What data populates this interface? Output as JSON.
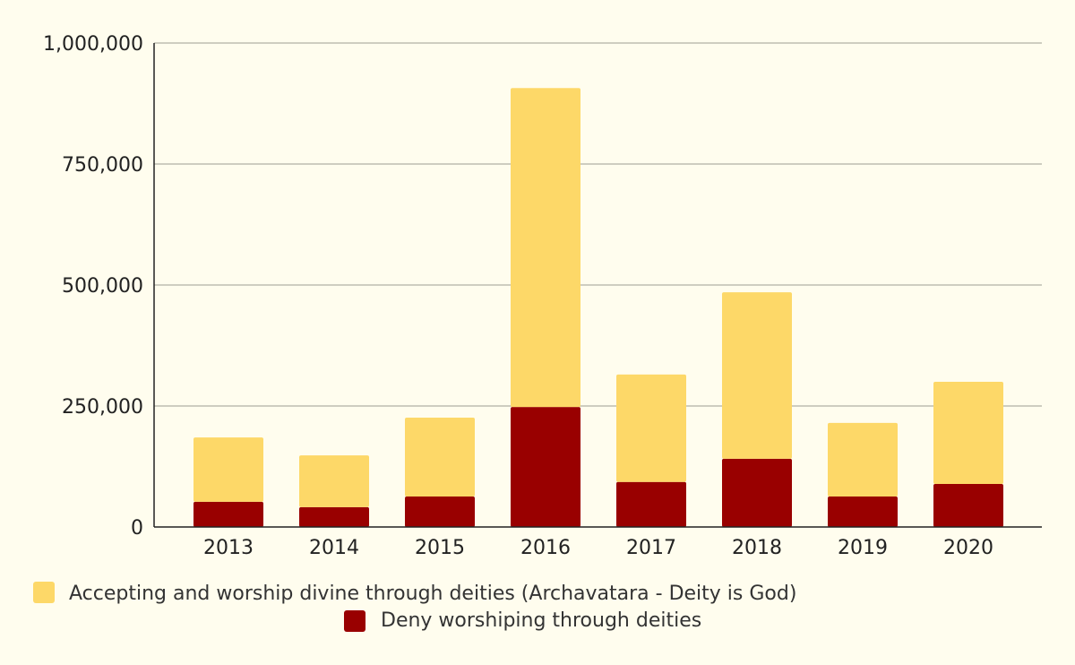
{
  "chart_data": {
    "type": "bar",
    "stacked": true,
    "title": "",
    "xlabel": "",
    "ylabel": "",
    "categories": [
      "2013",
      "2014",
      "2015",
      "2016",
      "2017",
      "2018",
      "2019",
      "2020"
    ],
    "series": [
      {
        "name": "Deny worshiping through deities",
        "color": "#990000",
        "values": [
          52000,
          41000,
          63000,
          248000,
          93000,
          141000,
          63000,
          89000
        ]
      },
      {
        "name": "Accepting and worship divine through deities (Archavatara - Deity is God)",
        "color": "#fdd868",
        "values": [
          133000,
          107000,
          163000,
          659000,
          222000,
          344000,
          152000,
          211000
        ]
      }
    ],
    "ylim": [
      0,
      1000000
    ],
    "yticks": [
      0,
      250000,
      500000,
      750000,
      1000000
    ],
    "ytick_labels": [
      "0",
      "250,000",
      "500,000",
      "750,000",
      "1,000,000"
    ],
    "grid": true,
    "legend_position": "bottom"
  }
}
